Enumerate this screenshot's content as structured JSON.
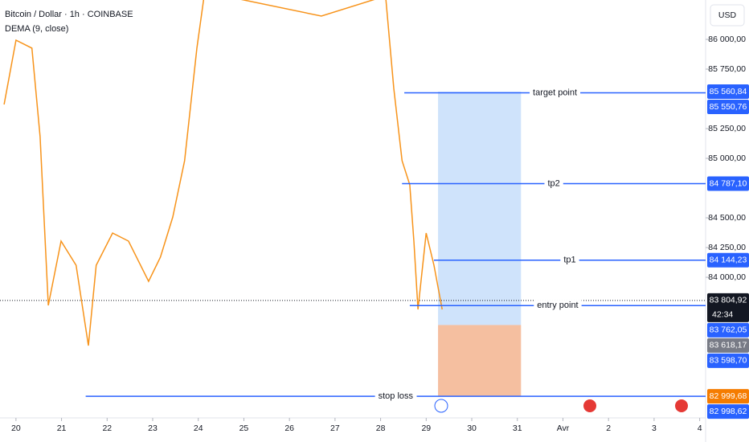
{
  "chart_data": {
    "type": "line",
    "title": "Bitcoin / Dollar · 1h · COINBASE",
    "indicator": "DEMA (9, close)",
    "currency": "USD",
    "x": [
      19.74,
      20.0,
      20.35,
      20.53,
      20.71,
      20.99,
      21.32,
      21.59,
      21.76,
      22.12,
      22.47,
      22.91,
      23.17,
      23.44,
      23.7,
      23.97,
      24.14,
      26.7,
      28.11,
      28.29,
      28.47,
      28.64,
      28.73,
      28.82,
      29.0,
      29.17,
      29.35
    ],
    "series": [
      {
        "name": "Bitcoin / Dollar",
        "color": "#f7931a",
        "values": [
          85453,
          85993,
          85926,
          85182,
          83764,
          84304,
          84101,
          83426,
          84101,
          84372,
          84304,
          83966,
          84169,
          84507,
          84980,
          85926,
          86399,
          86196,
          86365,
          85588,
          84980,
          84777,
          84304,
          83730,
          84372,
          84101,
          83730
        ]
      }
    ],
    "xlim": [
      19.65,
      35.13
    ],
    "ylim": [
      82818,
      86331
    ],
    "xticks": [
      20,
      21,
      22,
      23,
      24,
      25,
      26,
      27,
      28,
      29,
      30,
      31,
      {
        "value": 32,
        "label": "Avr"
      },
      {
        "value": 33,
        "label": "2"
      },
      {
        "value": 34,
        "label": "3"
      },
      {
        "value": 35,
        "label": "4"
      }
    ],
    "yticks": [
      {
        "value": 86000,
        "label": "86 000,00"
      },
      {
        "value": 85750,
        "label": "85 750,00"
      },
      {
        "value": 85250,
        "label": "85 250,00"
      },
      {
        "value": 85000,
        "label": "85 000,00"
      },
      {
        "value": 84500,
        "label": "84 500,00"
      },
      {
        "value": 84250,
        "label": "84 250,00"
      },
      {
        "value": 84000,
        "label": "84 000,00"
      }
    ],
    "levels": [
      {
        "name": "target point",
        "value": 85550.76,
        "start": 28.52,
        "color": "#2962ff",
        "text_color": "#1a3a8f"
      },
      {
        "name": "tp2",
        "value": 84787.1,
        "start": 28.47,
        "color": "#2962ff",
        "text_color": "#1a3a8f"
      },
      {
        "name": "tp1",
        "value": 84144.23,
        "start": 29.17,
        "color": "#2962ff",
        "text_color": "#e07b00"
      },
      {
        "name": "entry point",
        "value": 83762.05,
        "start": 28.64,
        "color": "#2962ff",
        "text_color": "#1a3a8f"
      },
      {
        "name": "stop loss",
        "value": 82999.68,
        "start": 21.53,
        "color": "#2962ff",
        "text_color": "#e07b00"
      }
    ],
    "position": {
      "entry": 83598.7,
      "target": 85560.84,
      "stop": 82998.62,
      "start": 29.26,
      "end": 31.08,
      "profit_color": "#cfe3fb",
      "loss_color": "#f5bfa0"
    },
    "current_price": 83804.92,
    "price_labels": [
      {
        "value": 85560.84,
        "label": "85 560,84",
        "color": "#2962ff"
      },
      {
        "value": 85550.76,
        "label": "85 550,76",
        "color": "#2962ff"
      },
      {
        "value": 84787.1,
        "label": "84 787,10",
        "color": "#2962ff"
      },
      {
        "value": 84144.23,
        "label": "84 144,23",
        "color": "#2962ff"
      },
      {
        "value": 83804.92,
        "label": "83 804,92",
        "color": "#131722",
        "sub": "42:34"
      },
      {
        "value": 83762.05,
        "label": "83 762,05",
        "color": "#2962ff"
      },
      {
        "value": 83618.17,
        "label": "83 618,17",
        "color": "#787b86"
      },
      {
        "value": 83598.7,
        "label": "83 598,70",
        "color": "#2962ff"
      },
      {
        "value": 82999.68,
        "label": "82 999,68",
        "color": "#f57c00"
      },
      {
        "value": 82998.62,
        "label": "82 998,62",
        "color": "#2962ff"
      }
    ]
  }
}
